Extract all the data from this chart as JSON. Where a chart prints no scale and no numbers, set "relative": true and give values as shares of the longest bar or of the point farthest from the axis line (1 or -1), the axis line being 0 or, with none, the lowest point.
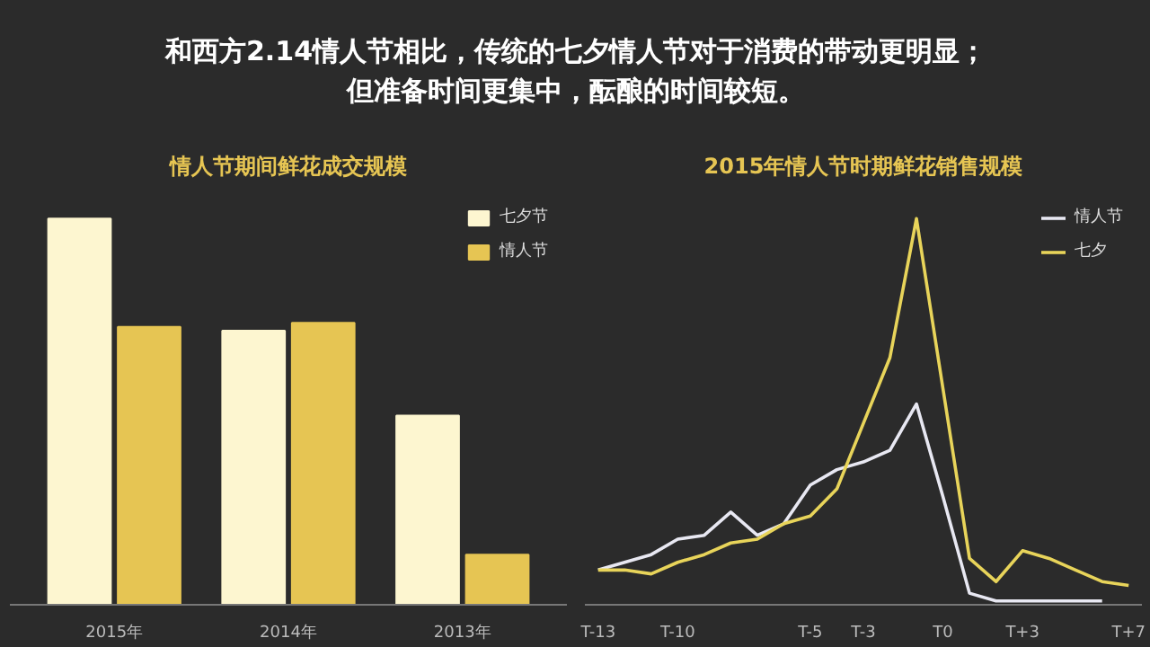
{
  "chart_data": [
    {
      "type": "other",
      "title": "和西方2.14情人节相比，传统的七夕情人节对于消费的带动更明显；",
      "subtitle": "但准备时间更集中，酝酿的时间较短。"
    },
    {
      "type": "bar",
      "title": "情人节期间鲜花成交规模",
      "relative": true,
      "categories": [
        "2015年",
        "2014年",
        "2013年"
      ],
      "legend": "top right",
      "series": [
        {
          "name": "七夕节",
          "color": "#fdf6d0",
          "values": [
            1,
            0.71,
            0.49
          ]
        },
        {
          "name": "情人节",
          "color": "#e6c553",
          "values": [
            0.72,
            0.73,
            0.13
          ]
        }
      ]
    },
    {
      "type": "line",
      "title": "2015年情人节时期鲜花销售规模",
      "relative": true,
      "legend": "top right",
      "marker": "none",
      "line_style": "solid",
      "categories": [
        "T-13",
        null,
        null,
        "T-10",
        null,
        null,
        null,
        null,
        "T-5",
        null,
        "T-3",
        null,
        null,
        "T0",
        null,
        null,
        "T+3",
        null,
        null,
        null,
        "T+7"
      ],
      "series": [
        {
          "name": "情人节",
          "color": "#e8e8f2",
          "values": [
            0.09,
            0.11,
            0.13,
            0.17,
            0.18,
            0.24,
            0.18,
            0.21,
            0.31,
            0.35,
            0.37,
            0.4,
            0.52,
            0.28,
            0.03,
            0.01,
            0.01,
            0.01,
            0.01,
            0.01,
            null
          ]
        },
        {
          "name": "七夕",
          "color": "#e8d45a",
          "values": [
            0.09,
            0.09,
            0.08,
            0.11,
            0.13,
            0.16,
            0.17,
            0.21,
            0.23,
            0.3,
            0.47,
            0.64,
            1,
            0.56,
            0.12,
            0.06,
            0.14,
            0.12,
            0.09,
            0.06,
            0.05
          ]
        }
      ]
    }
  ]
}
